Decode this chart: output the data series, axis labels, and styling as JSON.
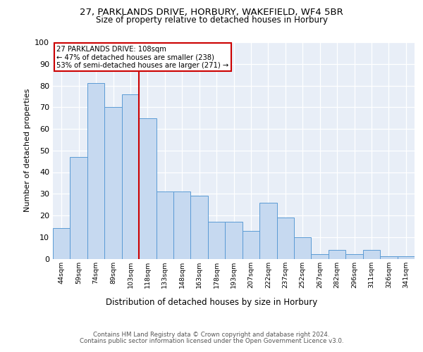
{
  "title1": "27, PARKLANDS DRIVE, HORBURY, WAKEFIELD, WF4 5BR",
  "title2": "Size of property relative to detached houses in Horbury",
  "xlabel": "Distribution of detached houses by size in Horbury",
  "ylabel": "Number of detached properties",
  "categories": [
    "44sqm",
    "59sqm",
    "74sqm",
    "89sqm",
    "103sqm",
    "118sqm",
    "133sqm",
    "148sqm",
    "163sqm",
    "178sqm",
    "193sqm",
    "207sqm",
    "222sqm",
    "237sqm",
    "252sqm",
    "267sqm",
    "282sqm",
    "296sqm",
    "311sqm",
    "326sqm",
    "341sqm"
  ],
  "values": [
    14,
    47,
    81,
    70,
    76,
    65,
    31,
    31,
    29,
    17,
    17,
    13,
    26,
    19,
    10,
    2,
    4,
    2,
    4,
    1,
    1
  ],
  "bar_color": "#c6d9f0",
  "bar_edge_color": "#5b9bd5",
  "background_color": "#e8eef7",
  "grid_color": "#ffffff",
  "vline_x": 4.5,
  "vline_color": "#cc0000",
  "annotation_line1": "27 PARKLANDS DRIVE: 108sqm",
  "annotation_line2": "← 47% of detached houses are smaller (238)",
  "annotation_line3": "53% of semi-detached houses are larger (271) →",
  "annotation_box_color": "#ffffff",
  "annotation_box_edge": "#cc0000",
  "ylim": [
    0,
    100
  ],
  "yticks": [
    0,
    10,
    20,
    30,
    40,
    50,
    60,
    70,
    80,
    90,
    100
  ],
  "footer1": "Contains HM Land Registry data © Crown copyright and database right 2024.",
  "footer2": "Contains public sector information licensed under the Open Government Licence v3.0."
}
